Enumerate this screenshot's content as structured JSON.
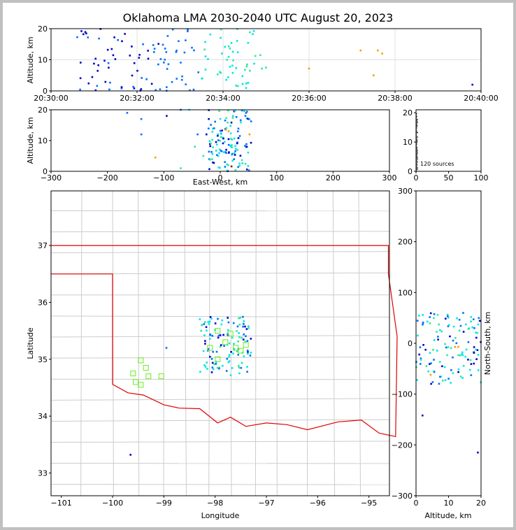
{
  "title": "Oklahoma LMA 2030-2040 UTC August 20, 2023",
  "colors": {
    "early": "#0000cc",
    "mid": "#0070ff",
    "late_cyan": "#00e6e6",
    "late_green": "#2ee89c",
    "last": "#ff9900",
    "state_border": "#e00000",
    "county_lines": "#cccccc",
    "station_marker": "#66ee22"
  },
  "chart_data": [
    {
      "id": "altitude-time",
      "type": "scatter",
      "title": "",
      "xlabel": "",
      "ylabel": "Altitude, km",
      "xlim": [
        "20:30:00",
        "20:40:00"
      ],
      "ylim": [
        0,
        20
      ],
      "xticks": [
        "20:30:00",
        "20:32:00",
        "20:34:00",
        "20:36:00",
        "20:38:00",
        "20:40:00"
      ],
      "yticks": [
        "0",
        "10",
        "20"
      ],
      "grid": true
    },
    {
      "id": "altitude-eastwest",
      "type": "scatter",
      "xlabel": "East-West, km",
      "ylabel": "Altitude, km",
      "xlim": [
        -300,
        300
      ],
      "ylim": [
        0,
        20
      ],
      "xticks": [
        "−300",
        "−200",
        "−100",
        "0",
        "100",
        "200",
        "300"
      ],
      "yticks": [
        "0",
        "10",
        "20"
      ]
    },
    {
      "id": "altitude-histogram",
      "type": "bar",
      "xlim": [
        0,
        100
      ],
      "ylim": [
        0,
        20
      ],
      "xticks": [
        "0",
        "50",
        "100"
      ],
      "yticks": [
        "0",
        "10",
        "20"
      ],
      "annotation": "120 sources"
    },
    {
      "id": "plan-view-map",
      "type": "scatter",
      "xlabel": "Longitude",
      "ylabel": "Latitude",
      "xlim": [
        -101.2,
        -94.6
      ],
      "ylim": [
        32.6,
        37.96
      ],
      "xticks": [
        "−101",
        "−100",
        "−99",
        "−98",
        "−97",
        "−96",
        "−95"
      ],
      "yticks": [
        "33",
        "34",
        "35",
        "36",
        "37"
      ]
    },
    {
      "id": "altitude-northsouth",
      "type": "scatter",
      "xlabel": "Altitude, km",
      "ylabel": "North-South, km",
      "xlim": [
        0,
        20
      ],
      "ylim": [
        -300,
        300
      ],
      "xticks": [
        "0",
        "10",
        "20"
      ],
      "yticks": [
        "−300",
        "−200",
        "−100",
        "0",
        "100",
        "200",
        "300"
      ]
    }
  ]
}
